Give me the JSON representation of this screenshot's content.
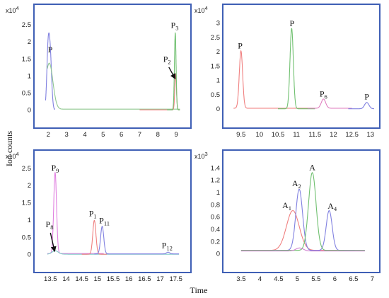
{
  "y_label": "Ion counts",
  "x_label": "Time",
  "chart_data": [
    {
      "type": "line",
      "multiplier_base": "x10",
      "multiplier_exp": "4",
      "xlim": [
        1.6,
        9.5
      ],
      "ylim": [
        -0.12,
        2.72
      ],
      "xticks": [
        2,
        3,
        4,
        5,
        6,
        7,
        8,
        9
      ],
      "yticks": [
        0,
        0.5,
        1,
        1.5,
        2,
        2.5
      ],
      "series": [
        {
          "color": "#8080e0",
          "peaks": [
            {
              "c": 1.98,
              "h": 1.5,
              "w": 0.07
            },
            {
              "c": 2.1,
              "h": 1.6,
              "w": 0.08
            }
          ],
          "baseline": 0.0,
          "xrange": [
            1.85,
            2.35
          ]
        },
        {
          "color": "#90c890",
          "peaks": [
            {
              "c": 2.05,
              "h": 1.35,
              "w": 0.2
            }
          ],
          "baseline": 0.02,
          "xrange": [
            1.95,
            9.2
          ]
        },
        {
          "color": "#f08080",
          "peaks": [
            {
              "c": 8.97,
              "h": 1.05,
              "w": 0.045
            }
          ],
          "baseline": 0.0,
          "xrange": [
            7.0,
            9.2
          ]
        },
        {
          "color": "#70c070",
          "peaks": [
            {
              "c": 8.95,
              "h": 2.25,
              "w": 0.045
            }
          ],
          "baseline": 0.0,
          "xrange": [
            8.5,
            9.2
          ]
        }
      ],
      "labels": [
        {
          "base": "P",
          "sub": "",
          "x": 2.1,
          "y": 1.68
        },
        {
          "base": "P",
          "sub": "2",
          "x": 8.5,
          "y": 1.4
        },
        {
          "base": "P",
          "sub": "3",
          "x": 8.92,
          "y": 2.4
        }
      ],
      "arrows": [
        {
          "from": [
            8.6,
            1.25
          ],
          "to": [
            8.93,
            0.93
          ]
        }
      ]
    },
    {
      "type": "line",
      "multiplier_base": "x10",
      "multiplier_exp": "4",
      "xlim": [
        9.2,
        13.1
      ],
      "ylim": [
        -0.18,
        3.2
      ],
      "xticks": [
        9.5,
        10,
        10.5,
        11,
        11.5,
        12,
        12.5,
        13
      ],
      "yticks": [
        0,
        0.5,
        1,
        1.5,
        2,
        2.5,
        3
      ],
      "series": [
        {
          "color": "#f08080",
          "peaks": [
            {
              "c": 9.5,
              "h": 2.0,
              "w": 0.045
            }
          ],
          "baseline": 0.02,
          "xrange": [
            9.3,
            11.5
          ]
        },
        {
          "color": "#70c070",
          "peaks": [
            {
              "c": 10.87,
              "h": 2.8,
              "w": 0.045
            }
          ],
          "baseline": 0.0,
          "xrange": [
            10.5,
            11.5
          ]
        },
        {
          "color": "#e080c0",
          "peaks": [
            {
              "c": 11.73,
              "h": 0.32,
              "w": 0.06
            }
          ],
          "baseline": 0.02,
          "xrange": [
            11.3,
            12.5
          ]
        },
        {
          "color": "#8080e0",
          "peaks": [
            {
              "c": 12.9,
              "h": 0.22,
              "w": 0.06
            }
          ],
          "baseline": 0.0,
          "xrange": [
            12.4,
            13.1
          ]
        }
      ],
      "labels": [
        {
          "base": "P",
          "sub": "",
          "x": 9.48,
          "y": 2.1
        },
        {
          "base": "P",
          "sub": "",
          "x": 10.88,
          "y": 2.88
        },
        {
          "base": "P",
          "sub": "6",
          "x": 11.73,
          "y": 0.42
        },
        {
          "base": "P",
          "sub": "",
          "x": 12.9,
          "y": 0.32
        }
      ],
      "arrows": []
    },
    {
      "type": "line",
      "multiplier_base": "x10",
      "multiplier_exp": "4",
      "xlim": [
        13.2,
        17.8
      ],
      "ylim": [
        -0.12,
        2.65
      ],
      "xticks": [
        13.5,
        14,
        14.5,
        15,
        15.5,
        16,
        16.5,
        17,
        17.5
      ],
      "yticks": [
        0,
        0.5,
        1,
        1.5,
        2,
        2.5
      ],
      "series": [
        {
          "color": "#e080e0",
          "peaks": [
            {
              "c": 13.65,
              "h": 2.35,
              "w": 0.045
            }
          ],
          "baseline": 0.02,
          "xrange": [
            13.4,
            15.2
          ]
        },
        {
          "color": "#80c8c8",
          "peaks": [
            {
              "c": 13.65,
              "h": 0.1,
              "w": 0.1
            }
          ],
          "baseline": 0.0,
          "xrange": [
            13.4,
            17.6
          ]
        },
        {
          "color": "#f08080",
          "peaks": [
            {
              "c": 14.9,
              "h": 0.98,
              "w": 0.05
            }
          ],
          "baseline": 0.0,
          "xrange": [
            14.5,
            15.3
          ]
        },
        {
          "color": "#8080e0",
          "peaks": [
            {
              "c": 15.15,
              "h": 0.8,
              "w": 0.05
            },
            {
              "c": 17.25,
              "h": 0.05,
              "w": 0.05
            }
          ],
          "baseline": 0.01,
          "xrange": [
            14.9,
            17.6
          ]
        }
      ],
      "labels": [
        {
          "base": "P",
          "sub": "9",
          "x": 13.65,
          "y": 2.42
        },
        {
          "base": "P",
          "sub": "8",
          "x": 13.47,
          "y": 0.78
        },
        {
          "base": "P",
          "sub": "1",
          "x": 14.85,
          "y": 1.1
        },
        {
          "base": "P",
          "sub": "11",
          "x": 15.22,
          "y": 0.9
        },
        {
          "base": "P",
          "sub": "12",
          "x": 17.22,
          "y": 0.18
        }
      ],
      "arrows": [
        {
          "from": [
            13.5,
            0.62
          ],
          "to": [
            13.63,
            0.1
          ]
        }
      ]
    },
    {
      "type": "line",
      "multiplier_base": "x10",
      "multiplier_exp": "3",
      "xlim": [
        3.2,
        7.05
      ],
      "ylim": [
        -0.08,
        1.48
      ],
      "xticks": [
        3.5,
        4,
        4.5,
        5,
        5.5,
        6,
        6.5,
        7
      ],
      "yticks": [
        0,
        0.2,
        0.4,
        0.6,
        0.8,
        1,
        1.2,
        1.4
      ],
      "series": [
        {
          "color": "#f08080",
          "peaks": [
            {
              "c": 4.88,
              "h": 0.65,
              "w": 0.17
            }
          ],
          "baseline": 0.05,
          "xrange": [
            3.5,
            6.8
          ]
        },
        {
          "color": "#8080e0",
          "peaks": [
            {
              "c": 5.05,
              "h": 1.0,
              "w": 0.09
            },
            {
              "c": 5.85,
              "h": 0.65,
              "w": 0.08
            }
          ],
          "baseline": 0.05,
          "xrange": [
            3.5,
            6.8
          ]
        },
        {
          "color": "#70c070",
          "peaks": [
            {
              "c": 5.4,
              "h": 1.27,
              "w": 0.1
            }
          ],
          "baseline": 0.05,
          "xrange": [
            3.5,
            6.8
          ]
        },
        {
          "color": "#d080d0",
          "peaks": [
            {
              "c": 5.06,
              "h": 0.05,
              "w": 0.1
            }
          ],
          "baseline": 0.04,
          "xrange": [
            3.5,
            6.8
          ]
        }
      ],
      "labels": [
        {
          "base": "A",
          "sub": "1",
          "x": 4.72,
          "y": 0.74
        },
        {
          "base": "A",
          "sub": "2",
          "x": 4.98,
          "y": 1.1
        },
        {
          "base": "A",
          "sub": "",
          "x": 5.4,
          "y": 1.36
        },
        {
          "base": "A",
          "sub": "4",
          "x": 5.93,
          "y": 0.73
        }
      ],
      "arrows": []
    }
  ]
}
